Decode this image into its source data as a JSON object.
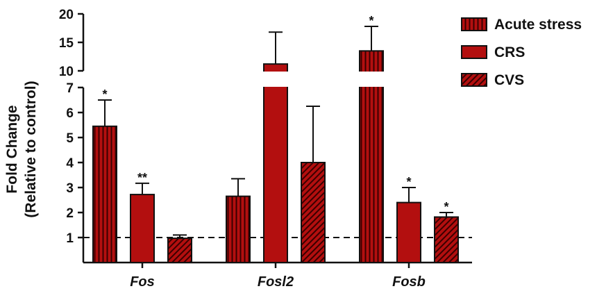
{
  "chart_data": {
    "type": "bar",
    "categories": [
      "Fos",
      "Fosl2",
      "Fosb"
    ],
    "series": [
      {
        "name": "Acute stress",
        "pattern": "vertical-stripes",
        "values": [
          5.45,
          2.65,
          13.5
        ],
        "errors": [
          1.05,
          0.7,
          4.3
        ],
        "sig": [
          "*",
          "",
          "*"
        ]
      },
      {
        "name": "CRS",
        "pattern": "solid",
        "values": [
          2.72,
          11.2,
          2.4
        ],
        "errors": [
          0.45,
          5.6,
          0.6
        ],
        "sig": [
          "**",
          "",
          "*"
        ]
      },
      {
        "name": "CVS",
        "pattern": "diagonal-hatch",
        "values": [
          0.97,
          4.0,
          1.82
        ],
        "errors": [
          0.13,
          2.25,
          0.18
        ],
        "sig": [
          "",
          "",
          "*"
        ]
      }
    ],
    "ylabel": [
      "Fold Change",
      "(Relative to control)"
    ],
    "y_axis_segments": [
      {
        "range": [
          0,
          7
        ],
        "ticks": [
          "1",
          "2",
          "3",
          "4",
          "5",
          "6",
          "7"
        ]
      },
      {
        "range": [
          10,
          20
        ],
        "ticks": [
          "10",
          "15",
          "20"
        ]
      }
    ],
    "reference_line": 1,
    "legend_position": "top-right",
    "colors": {
      "bar": "#b30f0f",
      "dark": "#3a0000",
      "axis": "#111111"
    }
  }
}
